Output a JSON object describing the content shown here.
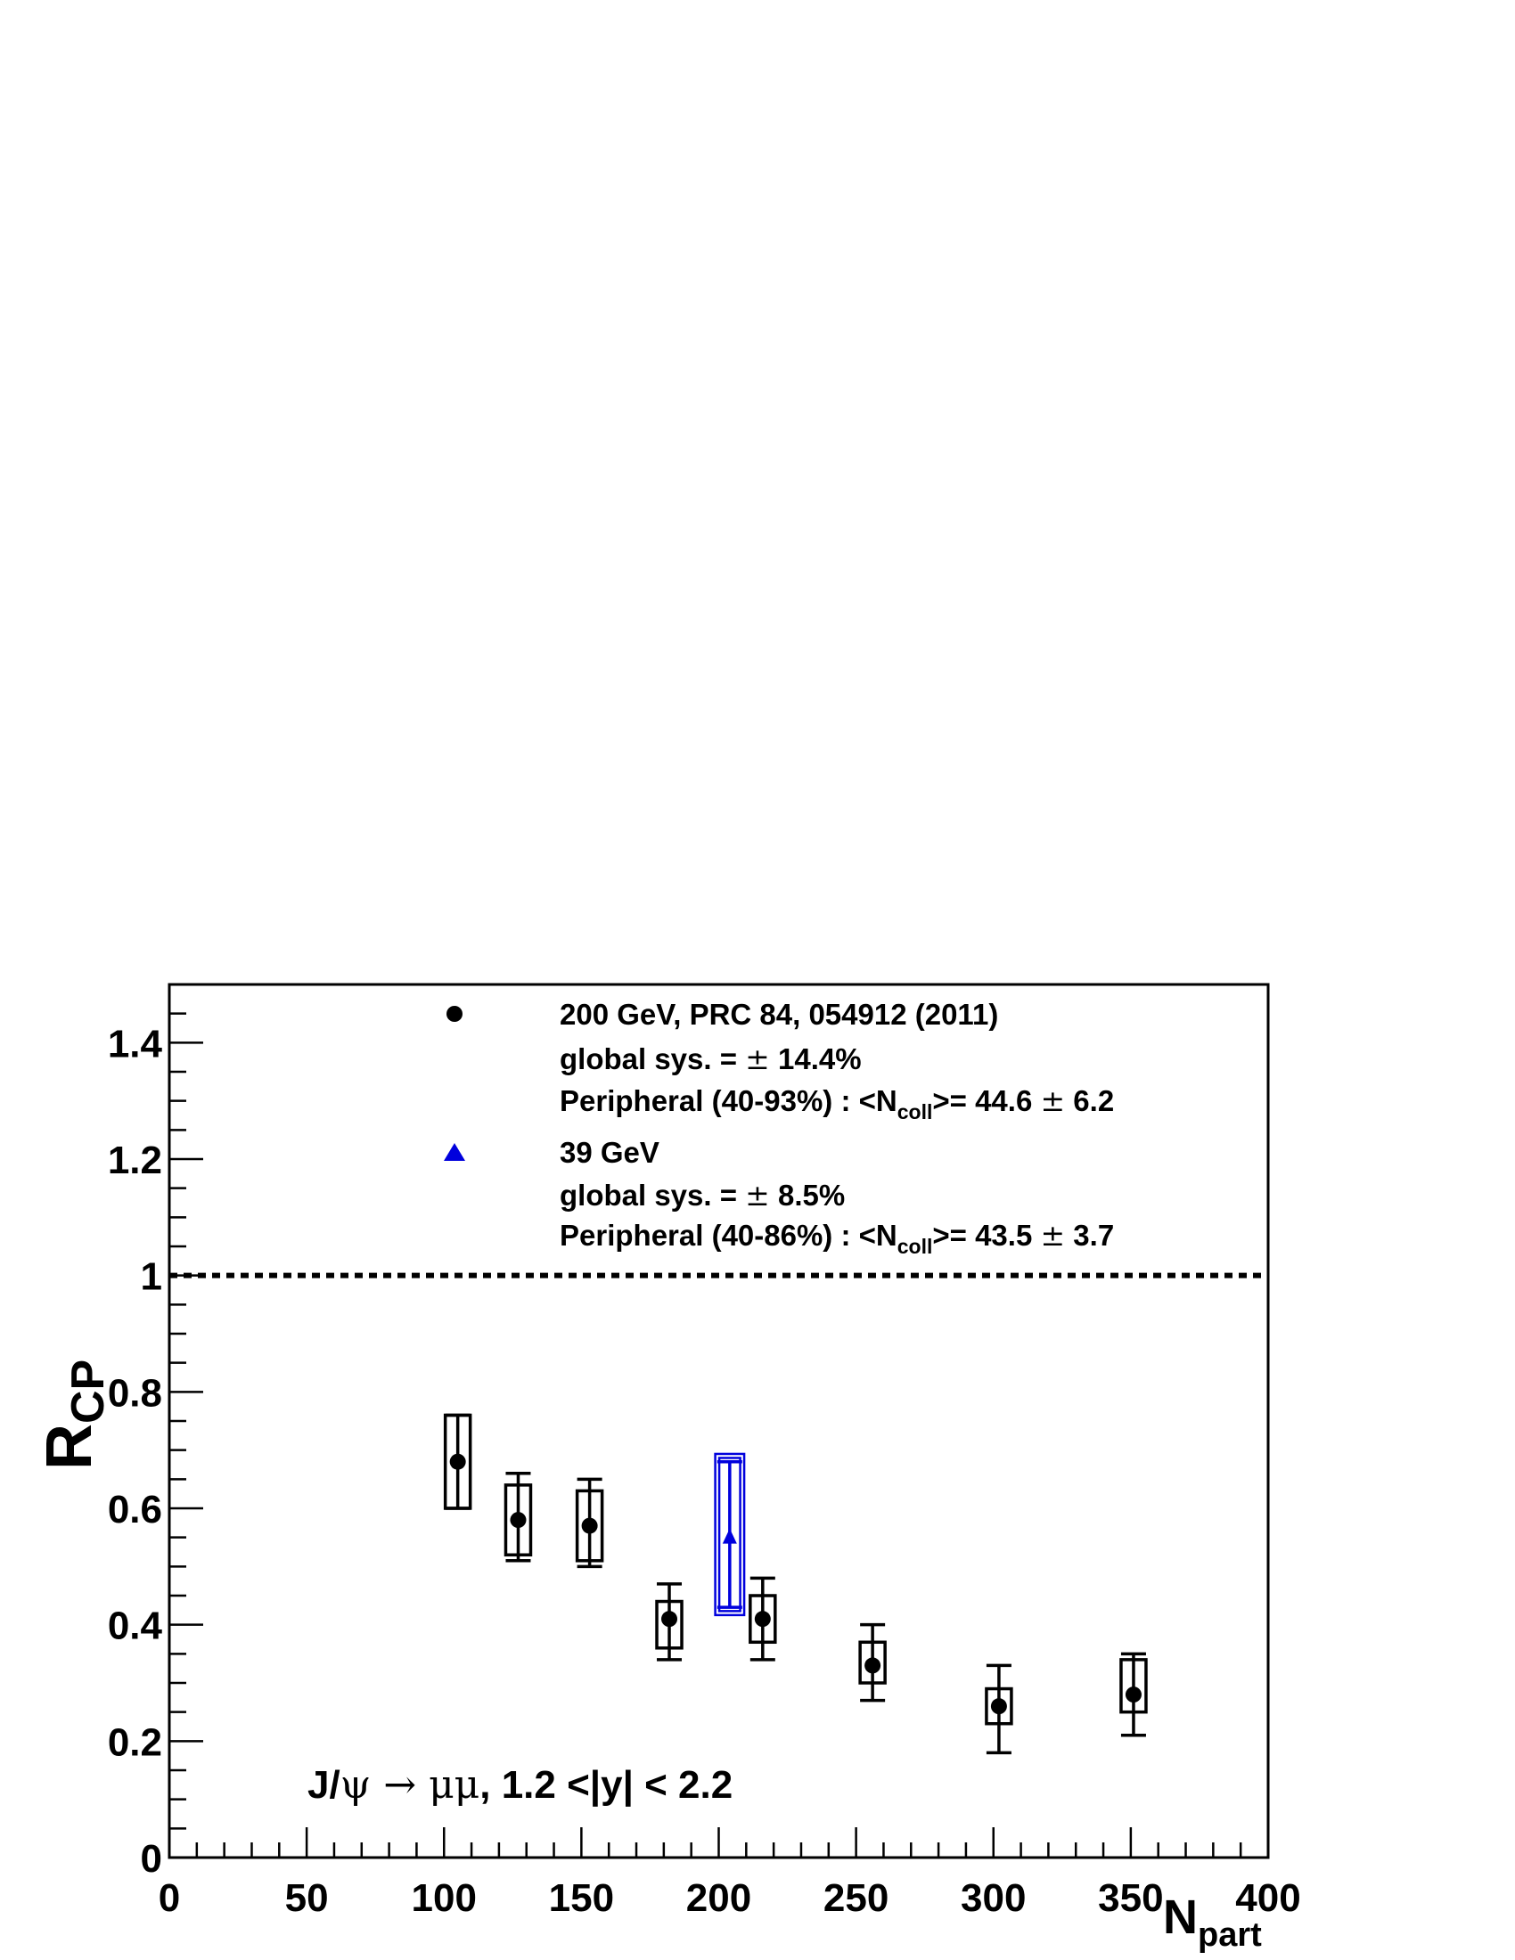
{
  "chart_data": {
    "type": "scatter",
    "xlabel_main": "N",
    "xlabel_sub": "part",
    "ylabel_main": "R",
    "ylabel_sub": "CP",
    "xlim": [
      0,
      400
    ],
    "ylim": [
      0,
      1.5
    ],
    "x_ticks": [
      0,
      50,
      100,
      150,
      200,
      250,
      300,
      350,
      400
    ],
    "y_ticks": [
      0,
      0.2,
      0.4,
      0.6,
      0.8,
      1,
      1.2,
      1.4
    ],
    "x_tick_labels": [
      "0",
      "50",
      "100",
      "150",
      "200",
      "250",
      "300",
      "350",
      "400"
    ],
    "y_tick_labels": [
      "0",
      "0.2",
      "0.4",
      "0.6",
      "0.8",
      "1",
      "1.2",
      "1.4"
    ],
    "reference_line": {
      "y": 1,
      "style": "dashed"
    },
    "series": [
      {
        "marker": "circle",
        "color": "#000000",
        "points": [
          {
            "x": 105,
            "y": 0.68,
            "stat": [
              0.6,
              0.76
            ],
            "sys": [
              0.6,
              0.76
            ]
          },
          {
            "x": 127,
            "y": 0.58,
            "stat": [
              0.51,
              0.66
            ],
            "sys": [
              0.52,
              0.64
            ]
          },
          {
            "x": 153,
            "y": 0.57,
            "stat": [
              0.5,
              0.65
            ],
            "sys": [
              0.51,
              0.63
            ]
          },
          {
            "x": 182,
            "y": 0.41,
            "stat": [
              0.34,
              0.47
            ],
            "sys": [
              0.36,
              0.44
            ]
          },
          {
            "x": 216,
            "y": 0.41,
            "stat": [
              0.34,
              0.48
            ],
            "sys": [
              0.37,
              0.45
            ]
          },
          {
            "x": 256,
            "y": 0.33,
            "stat": [
              0.27,
              0.4
            ],
            "sys": [
              0.3,
              0.37
            ]
          },
          {
            "x": 302,
            "y": 0.26,
            "stat": [
              0.18,
              0.33
            ],
            "sys": [
              0.23,
              0.29
            ]
          },
          {
            "x": 351,
            "y": 0.28,
            "stat": [
              0.21,
              0.35
            ],
            "sys": [
              0.25,
              0.34
            ]
          }
        ]
      },
      {
        "marker": "triangle",
        "color": "#0000dd",
        "points": [
          {
            "x": 204,
            "y": 0.55,
            "stat": [
              0.43,
              0.68
            ],
            "sys": [
              0.42,
              0.69
            ]
          }
        ]
      }
    ],
    "legend": {
      "placement": "top",
      "entries": [
        {
          "marker": "circle",
          "color": "#000000",
          "line1": "200 GeV, PRC 84, 054912 (2011)",
          "line2_prefix": "global sys. = ",
          "line2_pm": "±",
          "line2_value": " 14.4%",
          "line3_prefix": "Peripheral (40-93%) : <N",
          "line3_sub": "coll",
          "line3_mid": ">= 44.6 ",
          "line3_pm": "±",
          "line3_value": " 6.2"
        },
        {
          "marker": "triangle",
          "color": "#0000dd",
          "line1": "39 GeV",
          "line2_prefix": "global sys. = ",
          "line2_pm": " ±",
          "line2_value": " 8.5%",
          "line3_prefix": "Peripheral (40-86%) : <N",
          "line3_sub": "coll",
          "line3_mid": ">= 43.5 ",
          "line3_pm": "±",
          "line3_value": " 3.7"
        }
      ]
    },
    "annotation": {
      "part1": "J/",
      "psi": "ψ",
      "arrow": " → ",
      "mumu": "μμ",
      "part2": ", 1.2 <|y| < 2.2"
    }
  }
}
